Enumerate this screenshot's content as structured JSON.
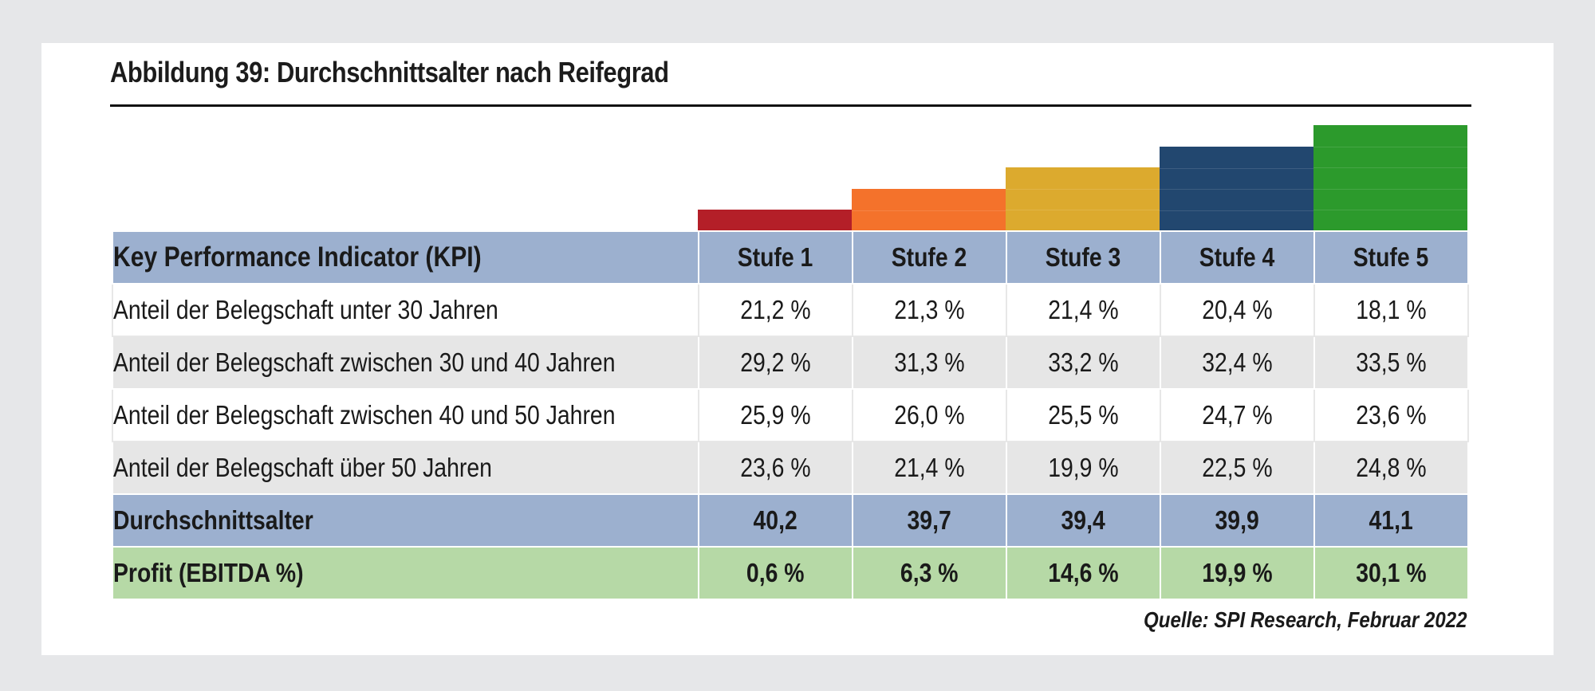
{
  "title": "Abbildung 39: Durchschnittsalter nach Reifegrad",
  "step_colors": [
    "#b41f28",
    "#f4722b",
    "#dcaa2e",
    "#22476f",
    "#2c9a2c"
  ],
  "table": {
    "header": {
      "label": "Key Performance Indicator (KPI)",
      "columns": [
        "Stufe 1",
        "Stufe 2",
        "Stufe 3",
        "Stufe 4",
        "Stufe 5"
      ]
    },
    "rows": [
      {
        "label": "Anteil der Belegschaft unter 30 Jahren",
        "values": [
          "21,2 %",
          "21,3 %",
          "21,4 %",
          "20,4 %",
          "18,1 %"
        ]
      },
      {
        "label": "Anteil der Belegschaft zwischen 30 und 40 Jahren",
        "values": [
          "29,2 %",
          "31,3 %",
          "33,2 %",
          "32,4 %",
          "33,5 %"
        ]
      },
      {
        "label": "Anteil der Belegschaft zwischen 40 und 50 Jahren",
        "values": [
          "25,9 %",
          "26,0 %",
          "25,5 %",
          "24,7 %",
          "23,6 %"
        ]
      },
      {
        "label": "Anteil der Belegschaft über 50 Jahren",
        "values": [
          "23,6 %",
          "21,4 %",
          "19,9 %",
          "22,5 %",
          "24,8 %"
        ]
      }
    ],
    "average": {
      "label": "Durchschnittsalter",
      "values": [
        "40,2",
        "39,7",
        "39,4",
        "39,9",
        "41,1"
      ]
    },
    "profit": {
      "label": "Profit (EBITDA %)",
      "values": [
        "0,6 %",
        "6,3 %",
        "14,6 %",
        "19,9 %",
        "30,1 %"
      ]
    }
  },
  "source": "Quelle: SPI Research, Februar 2022"
}
